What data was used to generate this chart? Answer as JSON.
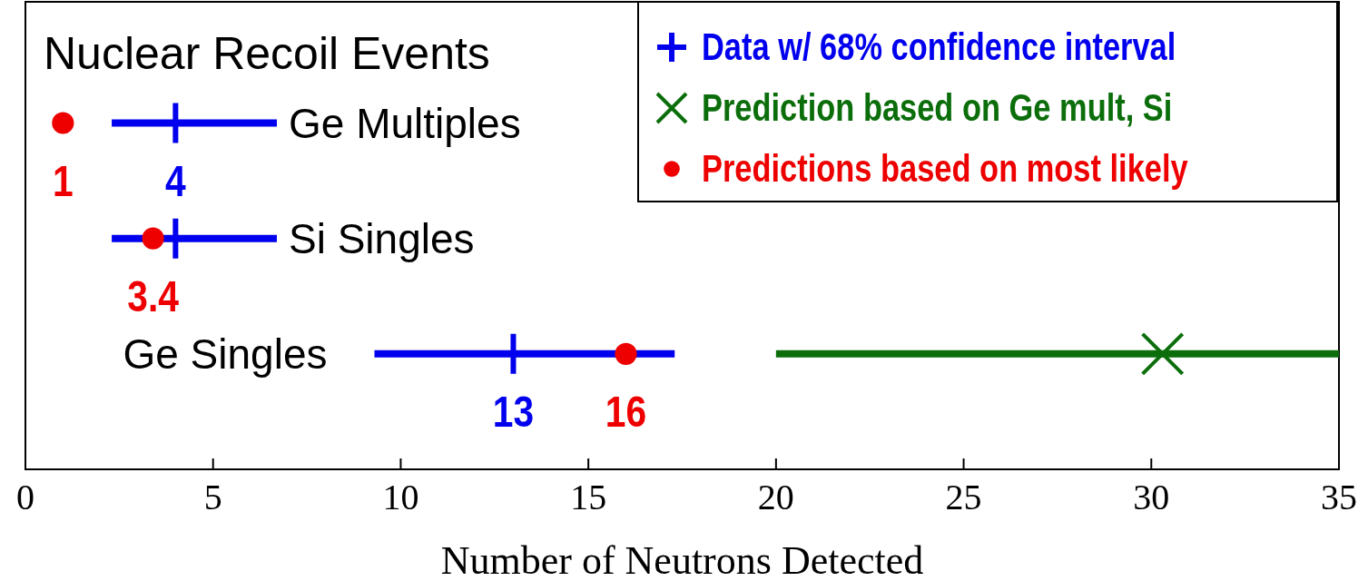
{
  "chart_data": {
    "type": "scatter",
    "orientation": "horizontal",
    "title": "Nuclear Recoil Events",
    "xlabel": "Number of Neutrons Detected",
    "categories": [
      "Ge Multiples",
      "Si Singles",
      "Ge Singles"
    ],
    "xlim": [
      0,
      35
    ],
    "xticks": [
      0,
      5,
      10,
      15,
      20,
      25,
      30,
      35
    ],
    "tick_labels": "x",
    "grid": false,
    "legend": "top right",
    "series": [
      {
        "name": "Data w/ 68% confidence interval",
        "color": "#0000ee",
        "marker": "cross",
        "values": [
          4,
          4,
          13
        ],
        "errors": [
          [
            2.3,
            6.7
          ],
          [
            2.3,
            6.7
          ],
          [
            9.3,
            17.3
          ]
        ],
        "value_labels": [
          "4",
          null,
          "13"
        ]
      },
      {
        "name": "Prediction based on Ge mult, Si",
        "color": "#0b6e0b",
        "marker": "x",
        "values": [
          null,
          null,
          30.3
        ],
        "errors": [
          null,
          null,
          [
            20,
            35
          ]
        ]
      },
      {
        "name": "Predictions based on most likely",
        "color": "#ee0000",
        "marker": "circle",
        "values": [
          1,
          3.4,
          16
        ],
        "value_labels": [
          "1",
          "3.4",
          "16"
        ]
      }
    ]
  }
}
